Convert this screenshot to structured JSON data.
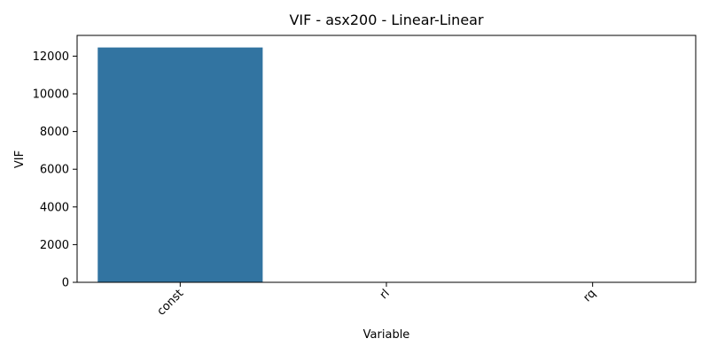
{
  "chart_data": {
    "type": "bar",
    "title": "VIF - asx200 - Linear-Linear",
    "xlabel": "Variable",
    "ylabel": "VIF",
    "categories": [
      "const",
      "rl",
      "rq"
    ],
    "values": [
      12460,
      1.05,
      1.05
    ],
    "ylim": [
      0,
      13100
    ],
    "yticks": [
      0,
      2000,
      4000,
      6000,
      8000,
      10000,
      12000
    ],
    "xtick_rotation_deg": 45,
    "grid": false,
    "legend": "none",
    "bar_color": "#3274a1"
  }
}
